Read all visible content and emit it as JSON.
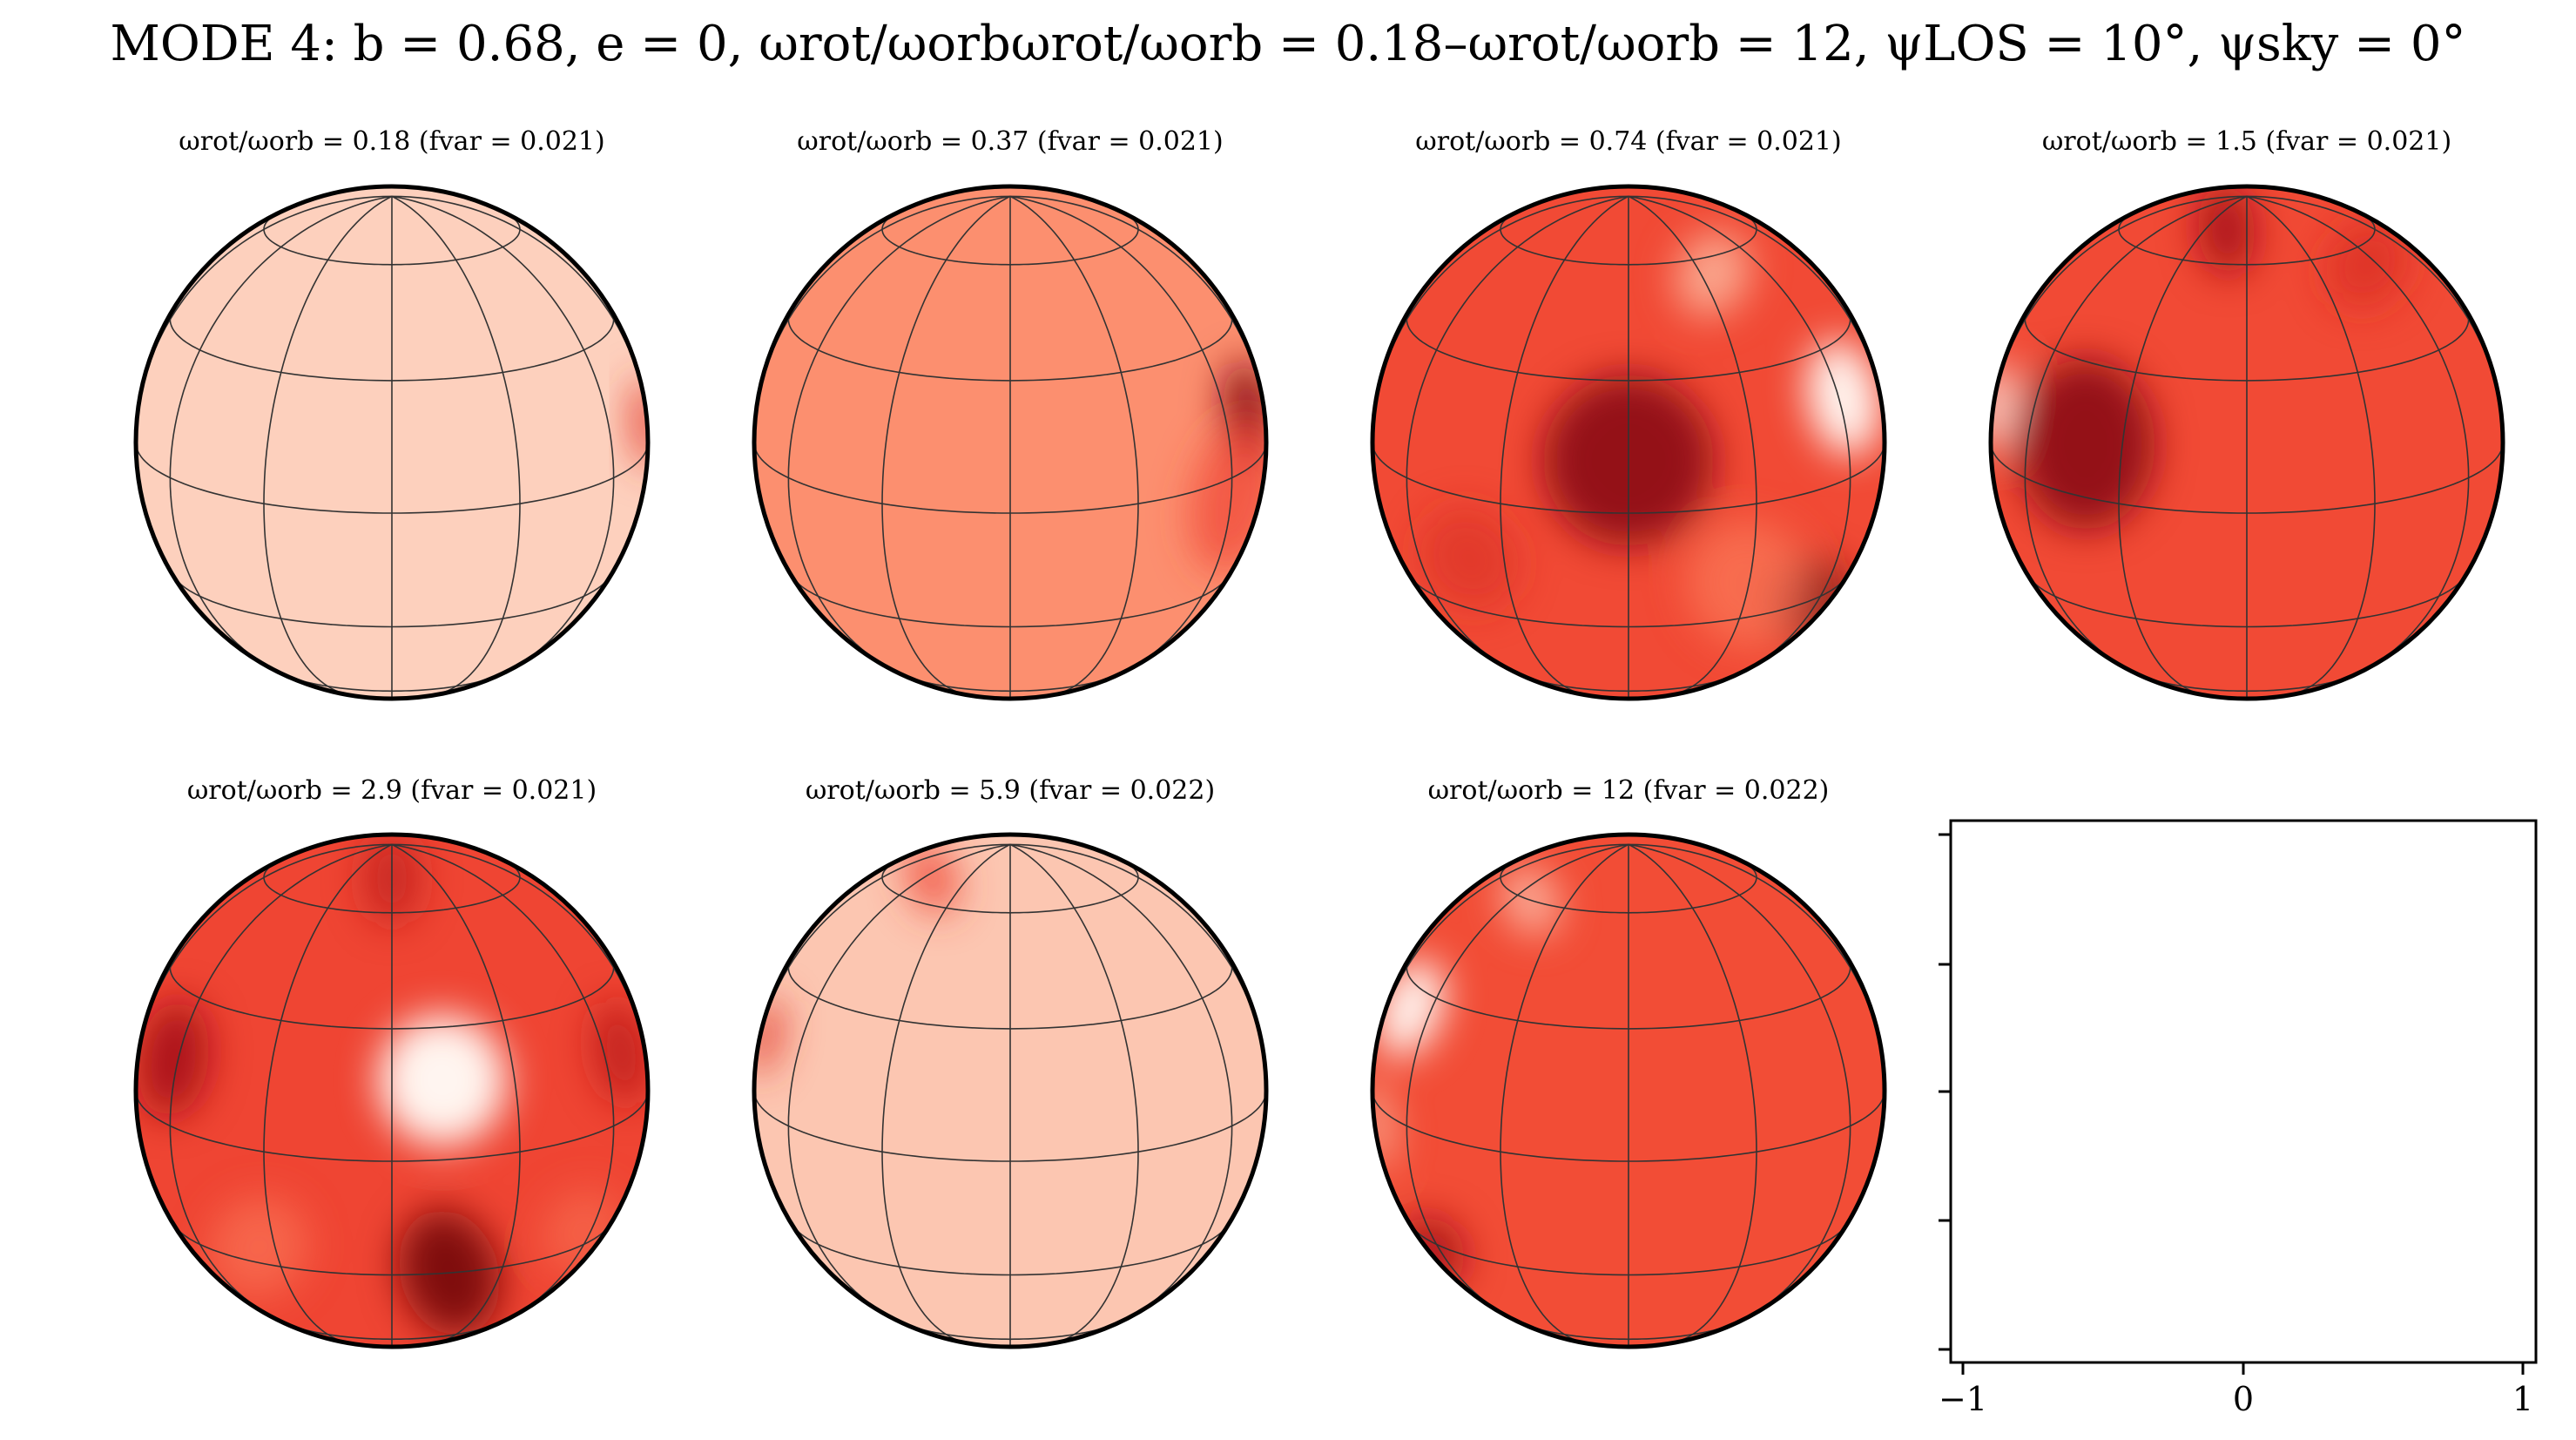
{
  "figure": {
    "title": "MODE 4: b = 0.68, e = 0, ωrot/ωorbωrot/ωorb = 0.18–ωrot/ωorb = 12, ψLOS = 10°, ψsky = 0°"
  },
  "panels": [
    {
      "label": "ωrot/ωorb = 0.18 (fvar = 0.021)",
      "base_color": "#fdd0bd",
      "spots": [
        {
          "lon": 88,
          "lat": 5,
          "size": 14,
          "color": "#e33a2b",
          "strength": 0.9
        }
      ]
    },
    {
      "label": "ωrot/ωorb = 0.37 (fvar = 0.021)",
      "base_color": "#fc8f6f",
      "spots": [
        {
          "lon": 72,
          "lat": 12,
          "size": 16,
          "color": "#8e0d14",
          "strength": 1.0
        },
        {
          "lon": 62,
          "lat": -5,
          "size": 24,
          "color": "#ef4533",
          "strength": 0.7
        }
      ]
    },
    {
      "label": "ωrot/ωorb = 0.74 (fvar = 0.021)",
      "base_color": "#f14a35",
      "spots": [
        {
          "lon": 0,
          "lat": 12,
          "size": 26,
          "color": "#8e0d14",
          "strength": 0.95
        },
        {
          "lon": 62,
          "lat": 18,
          "size": 18,
          "color": "#fff5f0",
          "strength": 1.0
        },
        {
          "lon": 55,
          "lat": -30,
          "size": 16,
          "color": "#7f0b11",
          "strength": 0.9
        },
        {
          "lon": 30,
          "lat": -20,
          "size": 22,
          "color": "#fb7a5a",
          "strength": 0.7
        },
        {
          "lon": 35,
          "lat": 55,
          "size": 14,
          "color": "#fcbca2",
          "strength": 0.8
        },
        {
          "lon": -40,
          "lat": -15,
          "size": 18,
          "color": "#d42a20",
          "strength": 0.5
        }
      ]
    },
    {
      "label": "ωrot/ωorb = 1.5 (fvar = 0.021)",
      "base_color": "#f14a35",
      "spots": [
        {
          "lon": -40,
          "lat": 12,
          "size": 26,
          "color": "#8e0d14",
          "strength": 0.95
        },
        {
          "lon": -85,
          "lat": 10,
          "size": 14,
          "color": "#fff0e8",
          "strength": 1.0
        },
        {
          "lon": -15,
          "lat": 72,
          "size": 14,
          "color": "#a50f15",
          "strength": 0.9
        },
        {
          "lon": 55,
          "lat": 55,
          "size": 16,
          "color": "#d42a20",
          "strength": 0.6
        }
      ]
    },
    {
      "label": "ωrot/ωorb = 2.9 (fvar = 0.021)",
      "base_color": "#ef4533",
      "spots": [
        {
          "lon": 12,
          "lat": 18,
          "size": 20,
          "color": "#fff5f0",
          "strength": 1.0
        },
        {
          "lon": 15,
          "lat": -30,
          "size": 20,
          "color": "#7f0b11",
          "strength": 1.0
        },
        {
          "lon": -62,
          "lat": 15,
          "size": 18,
          "color": "#a50f15",
          "strength": 0.9
        },
        {
          "lon": 68,
          "lat": 15,
          "size": 16,
          "color": "#b91b1c",
          "strength": 0.8
        },
        {
          "lon": 0,
          "lat": 72,
          "size": 14,
          "color": "#b91b1c",
          "strength": 0.7
        },
        {
          "lon": -35,
          "lat": -25,
          "size": 18,
          "color": "#fb7a5a",
          "strength": 0.6
        },
        {
          "lon": 55,
          "lat": -25,
          "size": 16,
          "color": "#fb7a5a",
          "strength": 0.5
        }
      ]
    },
    {
      "label": "ωrot/ωorb = 5.9 (fvar = 0.022)",
      "base_color": "#fcc6b1",
      "spots": [
        {
          "lon": -82,
          "lat": 15,
          "size": 12,
          "color": "#e33a2b",
          "strength": 0.9
        },
        {
          "lon": -55,
          "lat": 68,
          "size": 12,
          "color": "#ef4533",
          "strength": 0.8
        }
      ]
    },
    {
      "label": "ωrot/ωorb = 12 (fvar = 0.022)",
      "base_color": "#f24d36",
      "spots": [
        {
          "lon": -70,
          "lat": 25,
          "size": 16,
          "color": "#fff5f0",
          "strength": 1.0
        },
        {
          "lon": -70,
          "lat": -35,
          "size": 14,
          "color": "#a50f15",
          "strength": 0.9
        },
        {
          "lon": -80,
          "lat": -5,
          "size": 14,
          "color": "#fcbca2",
          "strength": 0.8
        },
        {
          "lon": -50,
          "lat": 60,
          "size": 12,
          "color": "#fdd0bd",
          "strength": 0.7
        }
      ]
    }
  ],
  "empty_axes": {
    "x_ticks": [
      "−1",
      "0",
      "1"
    ]
  }
}
